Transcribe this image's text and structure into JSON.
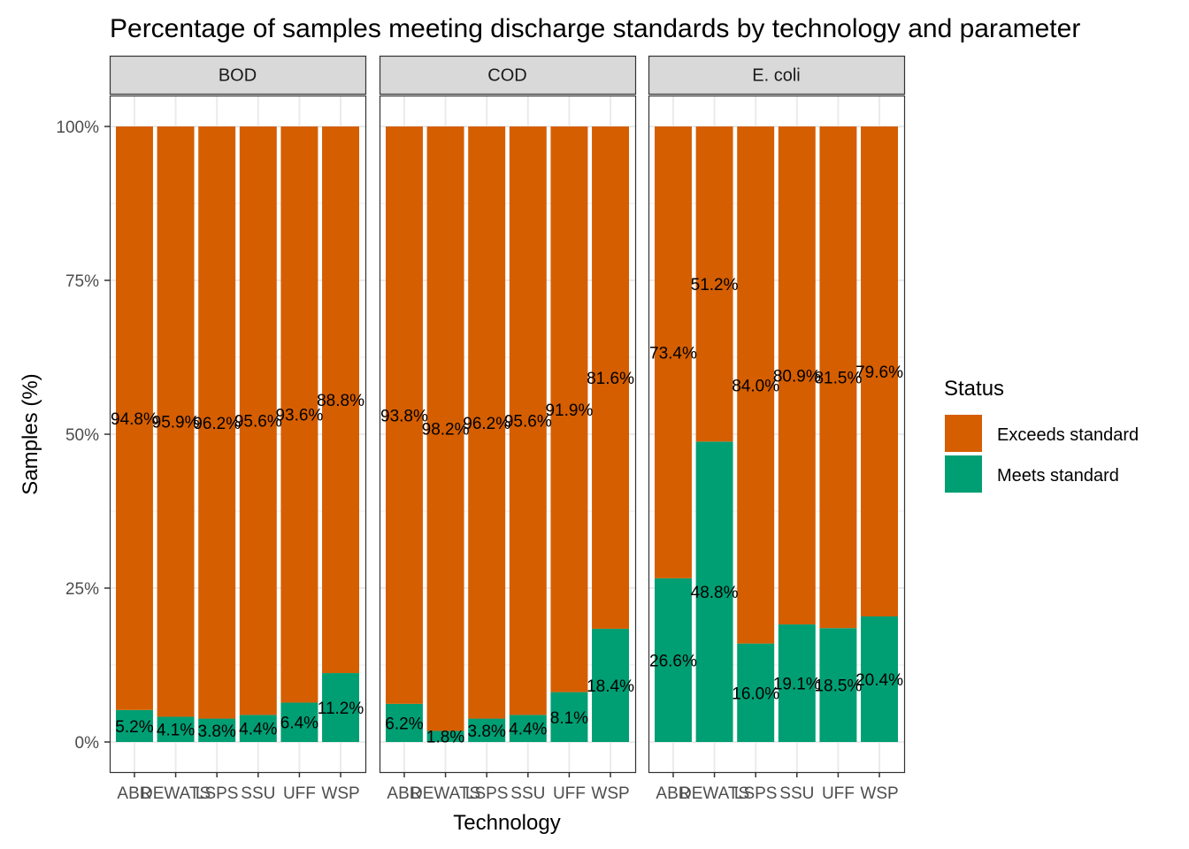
{
  "chart_data": {
    "type": "bar",
    "stacked": true,
    "title": "Percentage of samples meeting discharge standards by technology and parameter",
    "xlabel": "Technology",
    "ylabel": "Samples (%)",
    "ylim": [
      0,
      100
    ],
    "y_ticks": [
      "0%",
      "25%",
      "50%",
      "75%",
      "100%"
    ],
    "y_tick_values": [
      0,
      25,
      50,
      75,
      100
    ],
    "grid": true,
    "categories": [
      "ABR",
      "DEWATS",
      "LSPS",
      "SSU",
      "UFF",
      "WSP"
    ],
    "legend": {
      "title": "Status",
      "position": "right",
      "entries": [
        {
          "name": "Exceeds standard",
          "color": "#D55E00"
        },
        {
          "name": "Meets standard",
          "color": "#009E73"
        }
      ]
    },
    "facets": [
      {
        "name": "BOD",
        "series": [
          {
            "name": "Meets standard",
            "values": [
              5.2,
              4.1,
              3.8,
              4.4,
              6.4,
              11.2
            ],
            "labels": [
              "5.2%",
              "4.1%",
              "3.8%",
              "4.4%",
              "6.4%",
              "11.2%"
            ]
          },
          {
            "name": "Exceeds standard",
            "values": [
              94.8,
              95.9,
              96.2,
              95.6,
              93.6,
              88.8
            ],
            "labels": [
              "94.8%",
              "95.9%",
              "96.2%",
              "95.6%",
              "93.6%",
              "88.8%"
            ]
          }
        ]
      },
      {
        "name": "COD",
        "series": [
          {
            "name": "Meets standard",
            "values": [
              6.2,
              1.8,
              3.8,
              4.4,
              8.1,
              18.4
            ],
            "labels": [
              "6.2%",
              "1.8%",
              "3.8%",
              "4.4%",
              "8.1%",
              "18.4%"
            ]
          },
          {
            "name": "Exceeds standard",
            "values": [
              93.8,
              98.2,
              96.2,
              95.6,
              91.9,
              81.6
            ],
            "labels": [
              "93.8%",
              "98.2%",
              "96.2%",
              "95.6%",
              "91.9%",
              "81.6%"
            ]
          }
        ]
      },
      {
        "name": "E. coli",
        "series": [
          {
            "name": "Meets standard",
            "values": [
              26.6,
              48.8,
              16.0,
              19.1,
              18.5,
              20.4
            ],
            "labels": [
              "26.6%",
              "48.8%",
              "16.0%",
              "19.1%",
              "18.5%",
              "20.4%"
            ]
          },
          {
            "name": "Exceeds standard",
            "values": [
              73.4,
              51.2,
              84.0,
              80.9,
              81.5,
              79.6
            ],
            "labels": [
              "73.4%",
              "51.2%",
              "84.0%",
              "80.9%",
              "81.5%",
              "79.6%"
            ]
          }
        ]
      }
    ]
  }
}
